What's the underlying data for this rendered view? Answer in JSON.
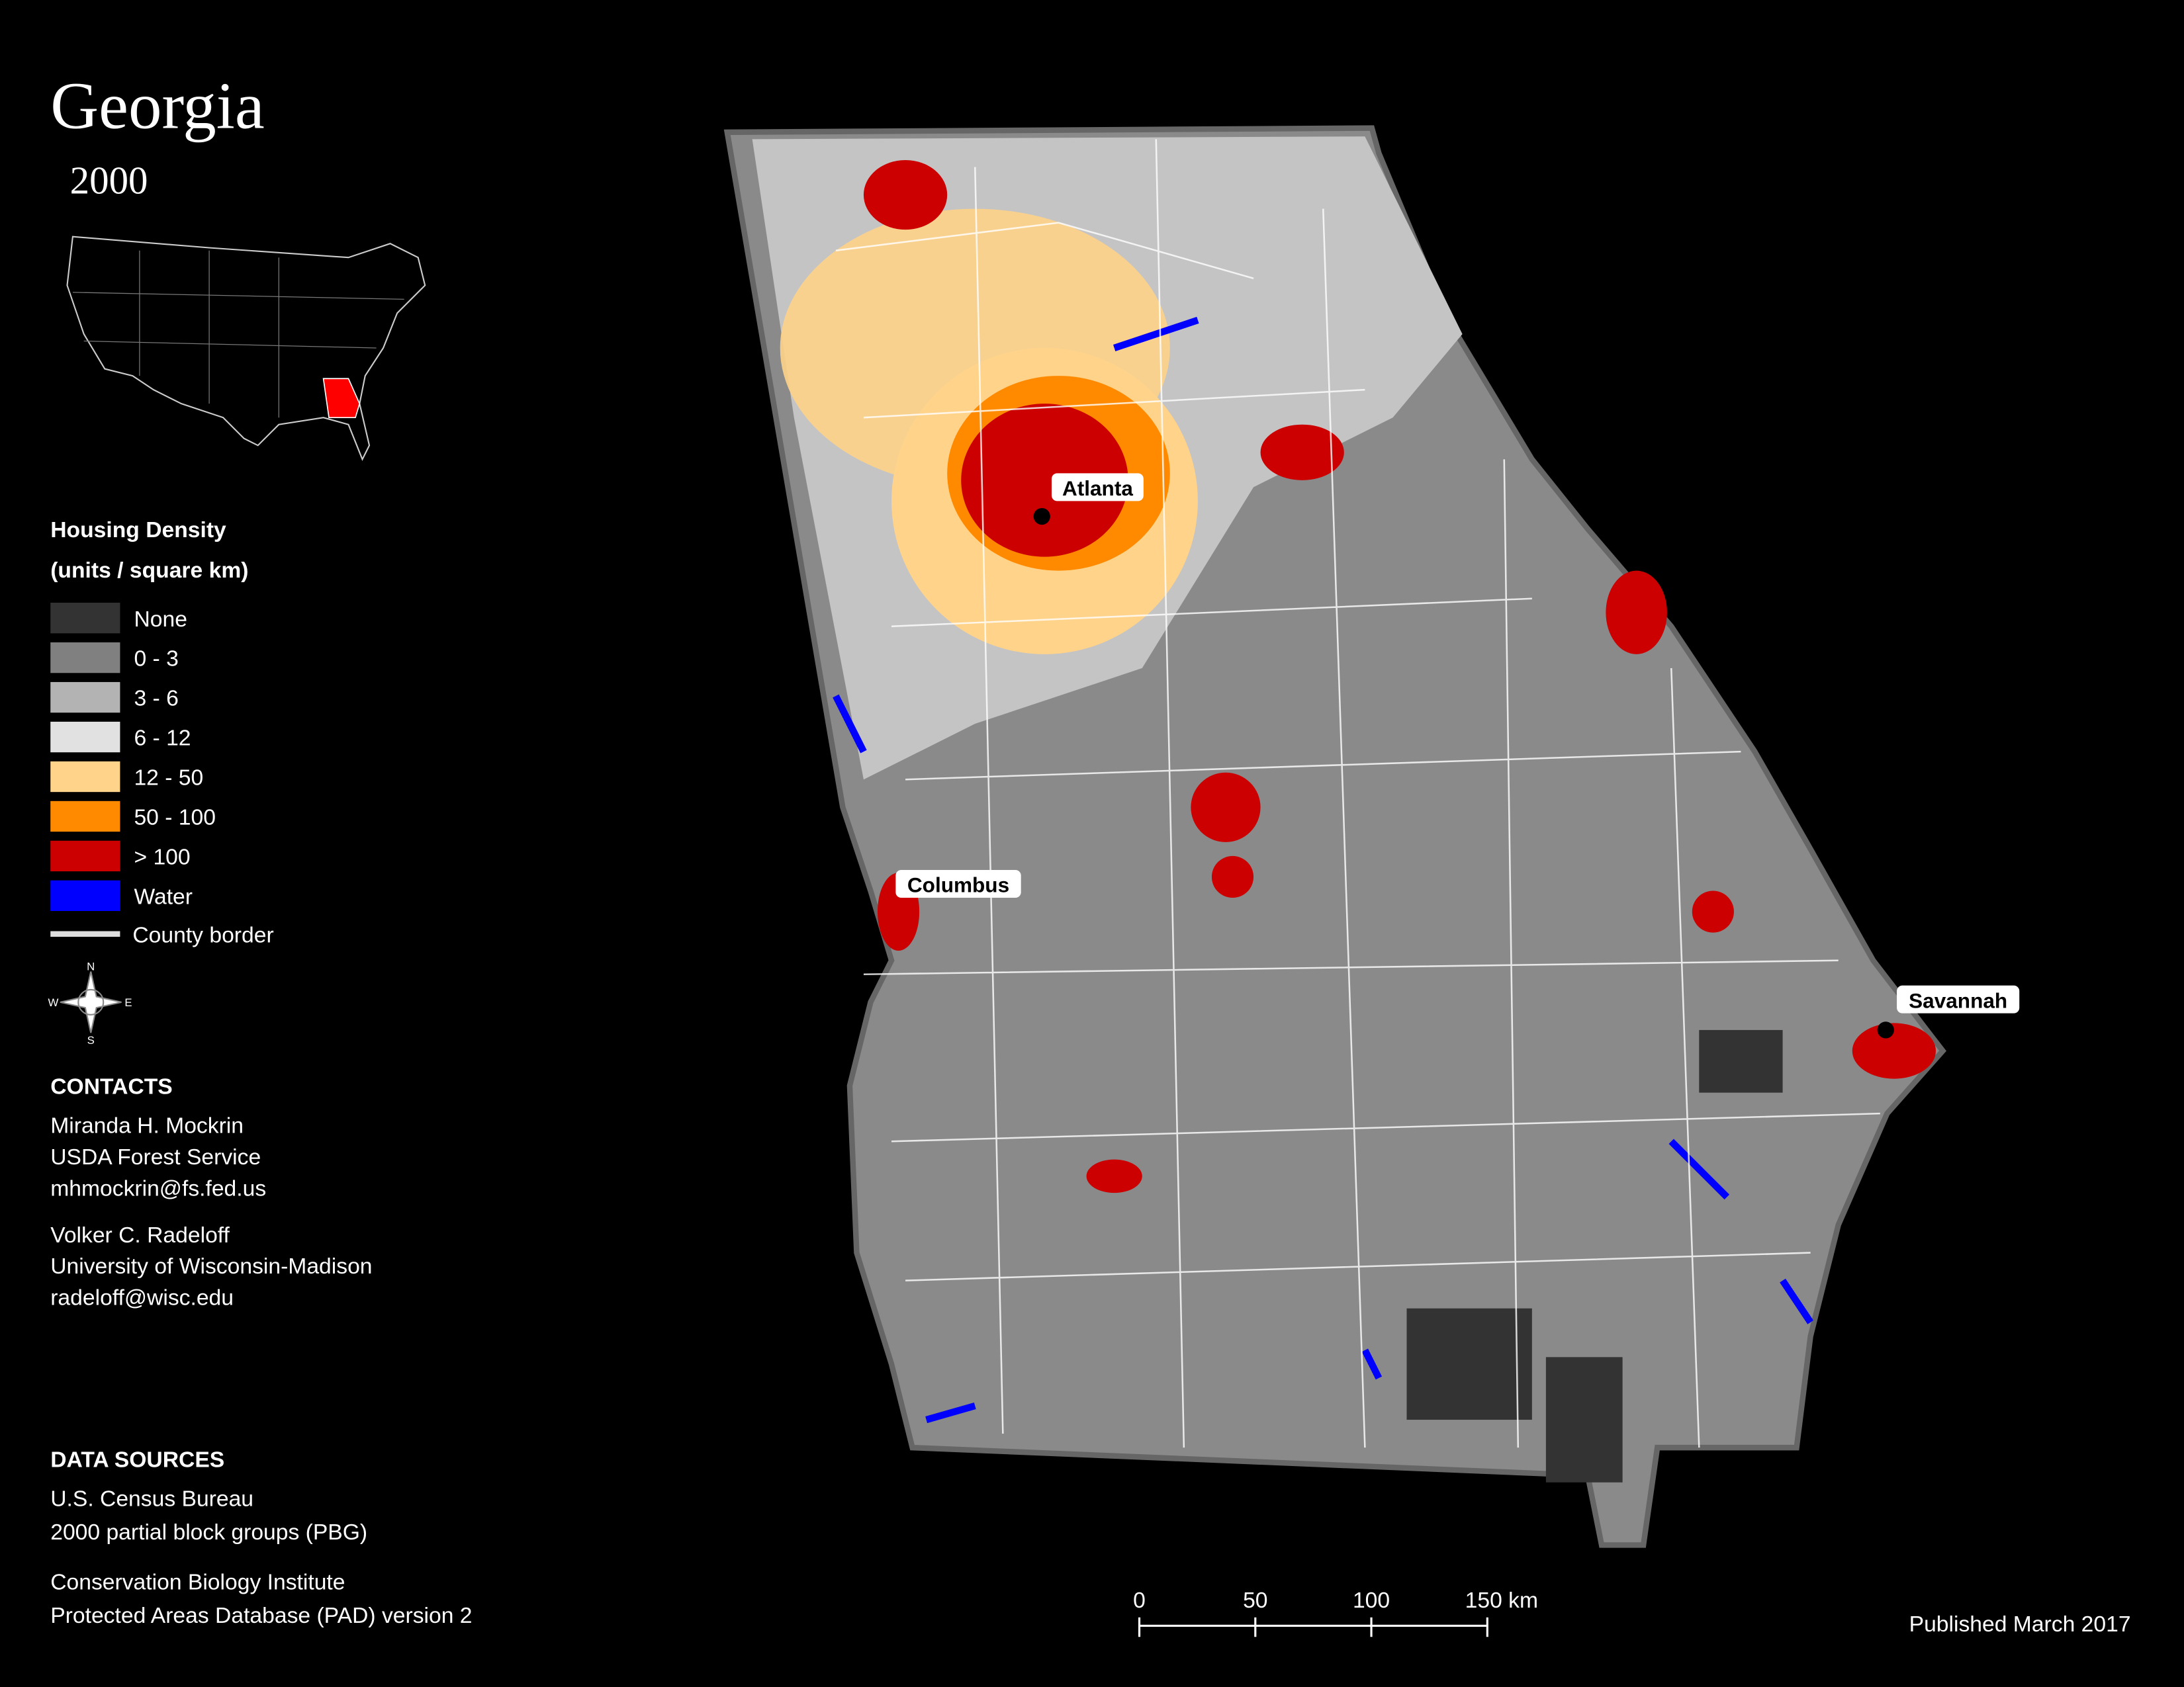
{
  "header": {
    "title": "Georgia",
    "year": "2000"
  },
  "legend": {
    "title": "Housing Density",
    "subtitle": "(units / square km)",
    "items": [
      {
        "label": "None",
        "color": "#333333"
      },
      {
        "label": "0 - 3",
        "color": "#808080"
      },
      {
        "label": "3 - 6",
        "color": "#b3b3b3"
      },
      {
        "label": "6 - 12",
        "color": "#e1e1e1"
      },
      {
        "label": "12 - 50",
        "color": "#ffd38a"
      },
      {
        "label": "50 - 100",
        "color": "#ff8a00"
      },
      {
        "label": "> 100",
        "color": "#cc0000"
      },
      {
        "label": "Water",
        "color": "#0000ff"
      }
    ],
    "border_label": "County border"
  },
  "compass": {
    "n": "N",
    "s": "S",
    "e": "E",
    "w": "W"
  },
  "cities": [
    "Atlanta",
    "Columbus",
    "Savannah"
  ],
  "contacts": {
    "title": "CONTACTS",
    "people": [
      [
        "Miranda H. Mockrin",
        "USDA Forest Service",
        "mhmockrin@fs.fed.us"
      ],
      [
        "Volker C. Radeloff",
        "University of Wisconsin-Madison",
        "radeloff@wisc.edu"
      ]
    ]
  },
  "sources": {
    "title": "DATA SOURCES",
    "groups": [
      [
        "U.S. Census Bureau",
        "2000 partial block groups (PBG)"
      ],
      [
        "Conservation Biology Institute",
        "Protected Areas Database (PAD) version 2"
      ]
    ]
  },
  "scale_bar": [
    "0",
    "50",
    "100",
    "150 km"
  ],
  "published": "Published March 2017"
}
